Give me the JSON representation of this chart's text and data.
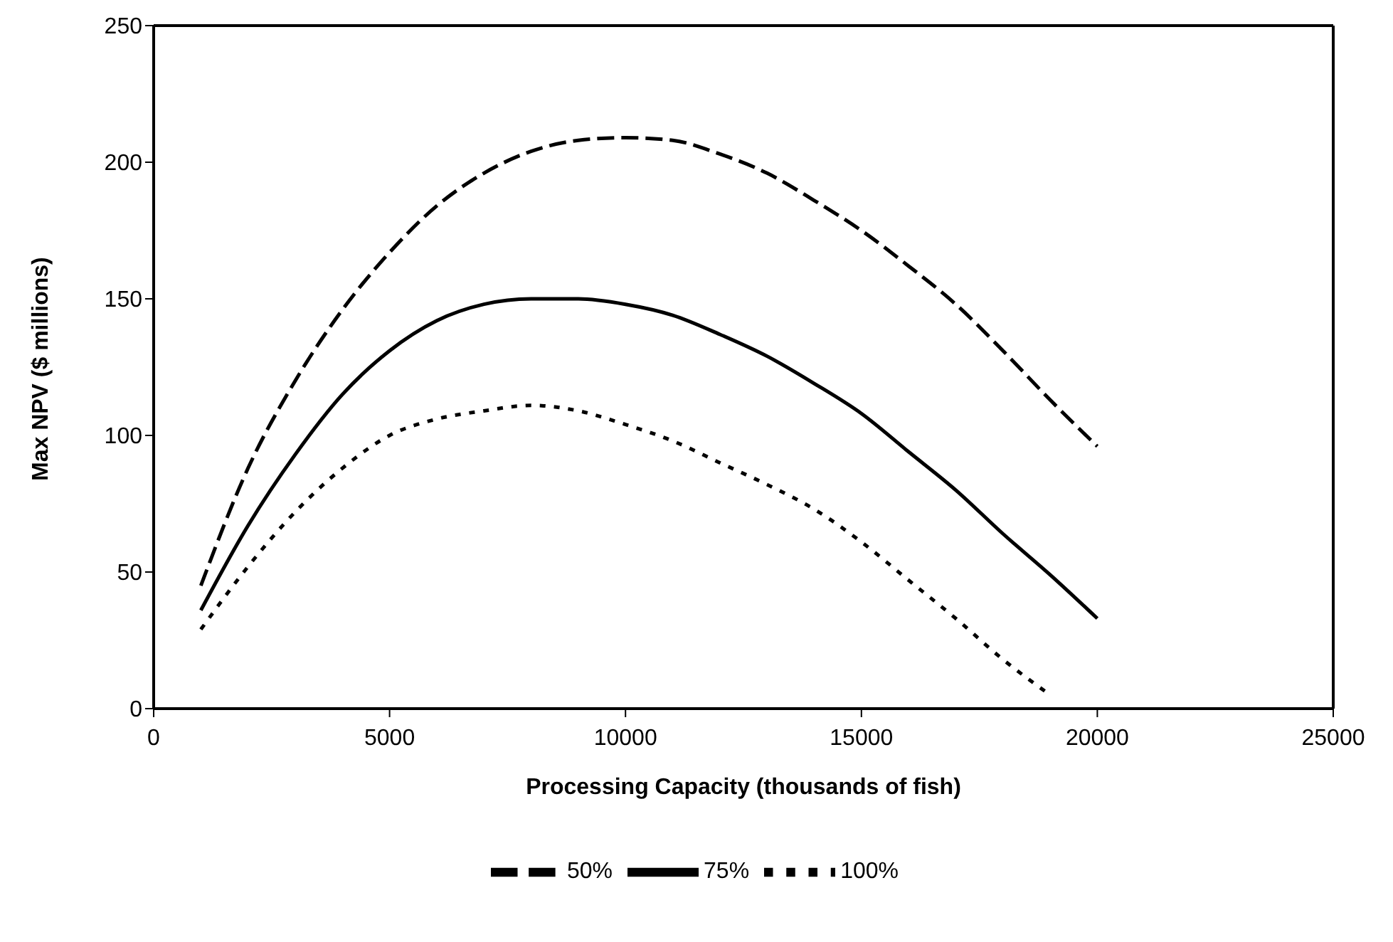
{
  "chart_data": {
    "type": "line",
    "xlabel": "Processing Capacity (thousands of fish)",
    "ylabel": "Max NPV ($ millions)",
    "xlim": [
      0,
      25000
    ],
    "xticks": [
      0,
      5000,
      10000,
      15000,
      20000,
      25000
    ],
    "ylim": [
      0,
      250
    ],
    "yticks": [
      0,
      50,
      100,
      150,
      200,
      250
    ],
    "grid": false,
    "legend": "bottom",
    "marker": "none",
    "x": [
      1000,
      2000,
      3000,
      4000,
      5000,
      6000,
      7000,
      8000,
      9000,
      10000,
      11000,
      12000,
      13000,
      14000,
      15000,
      16000,
      17000,
      18000,
      19000,
      20000
    ],
    "series": [
      {
        "name": "50%",
        "color": "#000000",
        "line_style": "dashed",
        "values": [
          45,
          88,
          120,
          146,
          167,
          184,
          196,
          204,
          208,
          209,
          208,
          203,
          196,
          186,
          175,
          162,
          148,
          131,
          113,
          96
        ]
      },
      {
        "name": "75%",
        "color": "#000000",
        "line_style": "solid",
        "values": [
          36,
          67,
          93,
          115,
          131,
          142,
          148,
          150,
          150,
          148,
          144,
          137,
          129,
          119,
          108,
          94,
          80,
          64,
          49,
          33
        ]
      },
      {
        "name": "100%",
        "color": "#000000",
        "line_style": "dotted",
        "values": [
          29,
          52,
          72,
          88,
          100,
          106,
          109,
          111,
          109,
          104,
          98,
          90,
          82,
          73,
          61,
          47,
          33,
          18,
          5,
          null
        ]
      }
    ]
  }
}
